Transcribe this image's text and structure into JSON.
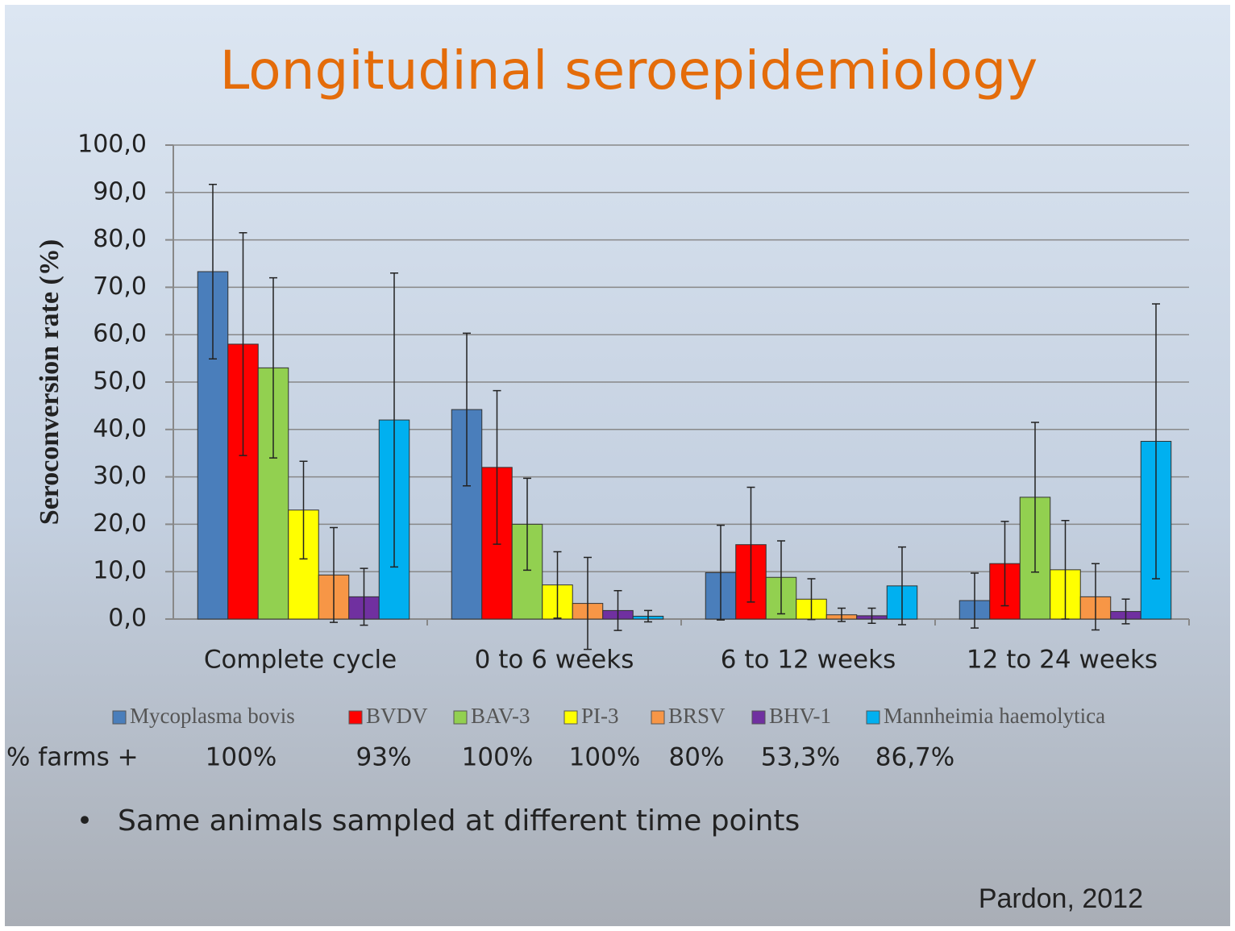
{
  "chart_data": {
    "type": "bar",
    "title": "Longitudinal seroepidemiology",
    "y_label": "Seroconversion rate (%)",
    "categories": [
      "Complete cycle",
      "0 to 6 weeks",
      "6 to 12 weeks",
      "12 to 24 weeks"
    ],
    "series": [
      {
        "name": "Mycoplasma bovis",
        "color": "#4a7ebb",
        "values": [
          73.3,
          44.2,
          9.8,
          3.9
        ],
        "errors": [
          18.4,
          16.1,
          10,
          5.8
        ]
      },
      {
        "name": "BVDV",
        "color": "#ff0000",
        "values": [
          58,
          32,
          15.7,
          11.7
        ],
        "errors": [
          23.5,
          16.2,
          12.1,
          8.9
        ]
      },
      {
        "name": "BAV-3",
        "color": "#92d050",
        "values": [
          53,
          20,
          8.8,
          25.7
        ],
        "errors": [
          19,
          9.7,
          7.7,
          15.8
        ]
      },
      {
        "name": "PI-3",
        "color": "#ffff00",
        "values": [
          23,
          7.2,
          4.2,
          10.4
        ],
        "errors": [
          10.3,
          7,
          4.3,
          10.4
        ]
      },
      {
        "name": "BRSV",
        "color": "#f79646",
        "values": [
          9.3,
          3.3,
          0.9,
          4.7
        ],
        "errors": [
          10,
          9.7,
          1.4,
          7
        ]
      },
      {
        "name": "BHV-1",
        "color": "#7030a0",
        "values": [
          4.7,
          1.8,
          0.7,
          1.6
        ],
        "errors": [
          6,
          4.2,
          1.6,
          2.6
        ]
      },
      {
        "name": "Mannheimia haemolytica",
        "color": "#00b0f0",
        "values": [
          42,
          0.6,
          7,
          37.5
        ],
        "errors": [
          31,
          1.2,
          8.2,
          29
        ]
      }
    ],
    "ylim": [
      0,
      100
    ],
    "yticks": [
      {
        "value": 0,
        "label": "0,0"
      },
      {
        "value": 10,
        "label": "10,0"
      },
      {
        "value": 20,
        "label": "20,0"
      },
      {
        "value": 30,
        "label": "30,0"
      },
      {
        "value": 40,
        "label": "40,0"
      },
      {
        "value": 50,
        "label": "50,0"
      },
      {
        "value": 60,
        "label": "60,0"
      },
      {
        "value": 70,
        "label": "70,0"
      },
      {
        "value": 80,
        "label": "80,0"
      },
      {
        "value": 90,
        "label": "90,0"
      },
      {
        "value": 100,
        "label": "100,0"
      }
    ],
    "grid": true,
    "legend": "bottom",
    "farms_row": {
      "label": "% farms +",
      "values": [
        "100%",
        "93%",
        "100%",
        "100%",
        "80%",
        "53,3%",
        "86,7%"
      ]
    },
    "bullet": "Same animals sampled at different time points",
    "source": "Pardon, 2012"
  }
}
